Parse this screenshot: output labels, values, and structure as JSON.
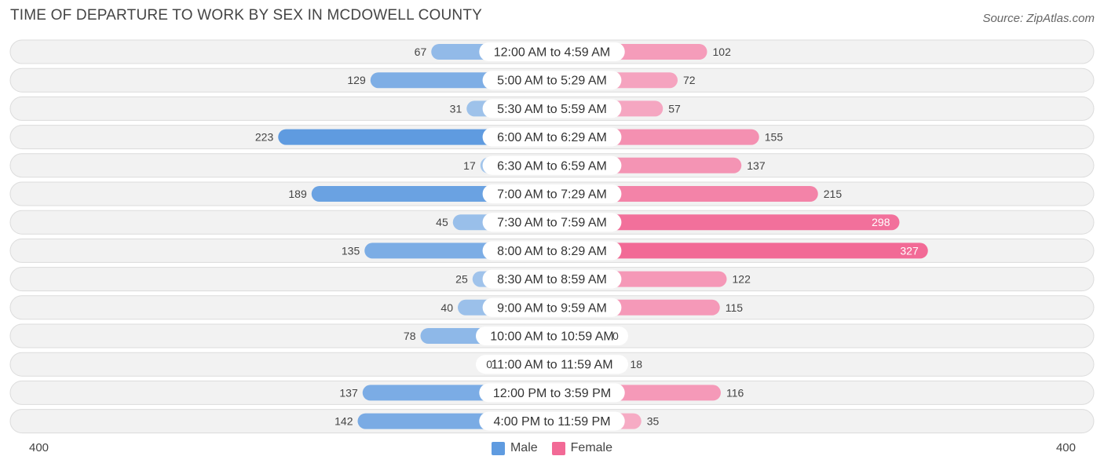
{
  "title": "TIME OF DEPARTURE TO WORK BY SEX IN MCDOWELL COUNTY",
  "source": "Source: ZipAtlas.com",
  "colors": {
    "male_light": "#a8c8ec",
    "male_dark": "#5f9be0",
    "female_light": "#f6b3ca",
    "female_dark": "#f26a96",
    "row_bg": "#efefef",
    "row_border": "#dcdcdc"
  },
  "chart_data": {
    "type": "bar",
    "orientation": "horizontal-diverging",
    "categories": [
      "12:00 AM to 4:59 AM",
      "5:00 AM to 5:29 AM",
      "5:30 AM to 5:59 AM",
      "6:00 AM to 6:29 AM",
      "6:30 AM to 6:59 AM",
      "7:00 AM to 7:29 AM",
      "7:30 AM to 7:59 AM",
      "8:00 AM to 8:29 AM",
      "8:30 AM to 8:59 AM",
      "9:00 AM to 9:59 AM",
      "10:00 AM to 10:59 AM",
      "11:00 AM to 11:59 AM",
      "12:00 PM to 3:59 PM",
      "4:00 PM to 11:59 PM"
    ],
    "series": [
      {
        "name": "Male",
        "values": [
          67,
          129,
          31,
          223,
          17,
          189,
          45,
          135,
          25,
          40,
          78,
          0,
          137,
          142
        ]
      },
      {
        "name": "Female",
        "values": [
          102,
          72,
          57,
          155,
          137,
          215,
          298,
          327,
          122,
          115,
          0,
          18,
          116,
          35
        ]
      }
    ],
    "axis_min_label": "400",
    "axis_max_label": "400",
    "xlim": [
      -400,
      400
    ],
    "legend_position": "bottom-center"
  }
}
